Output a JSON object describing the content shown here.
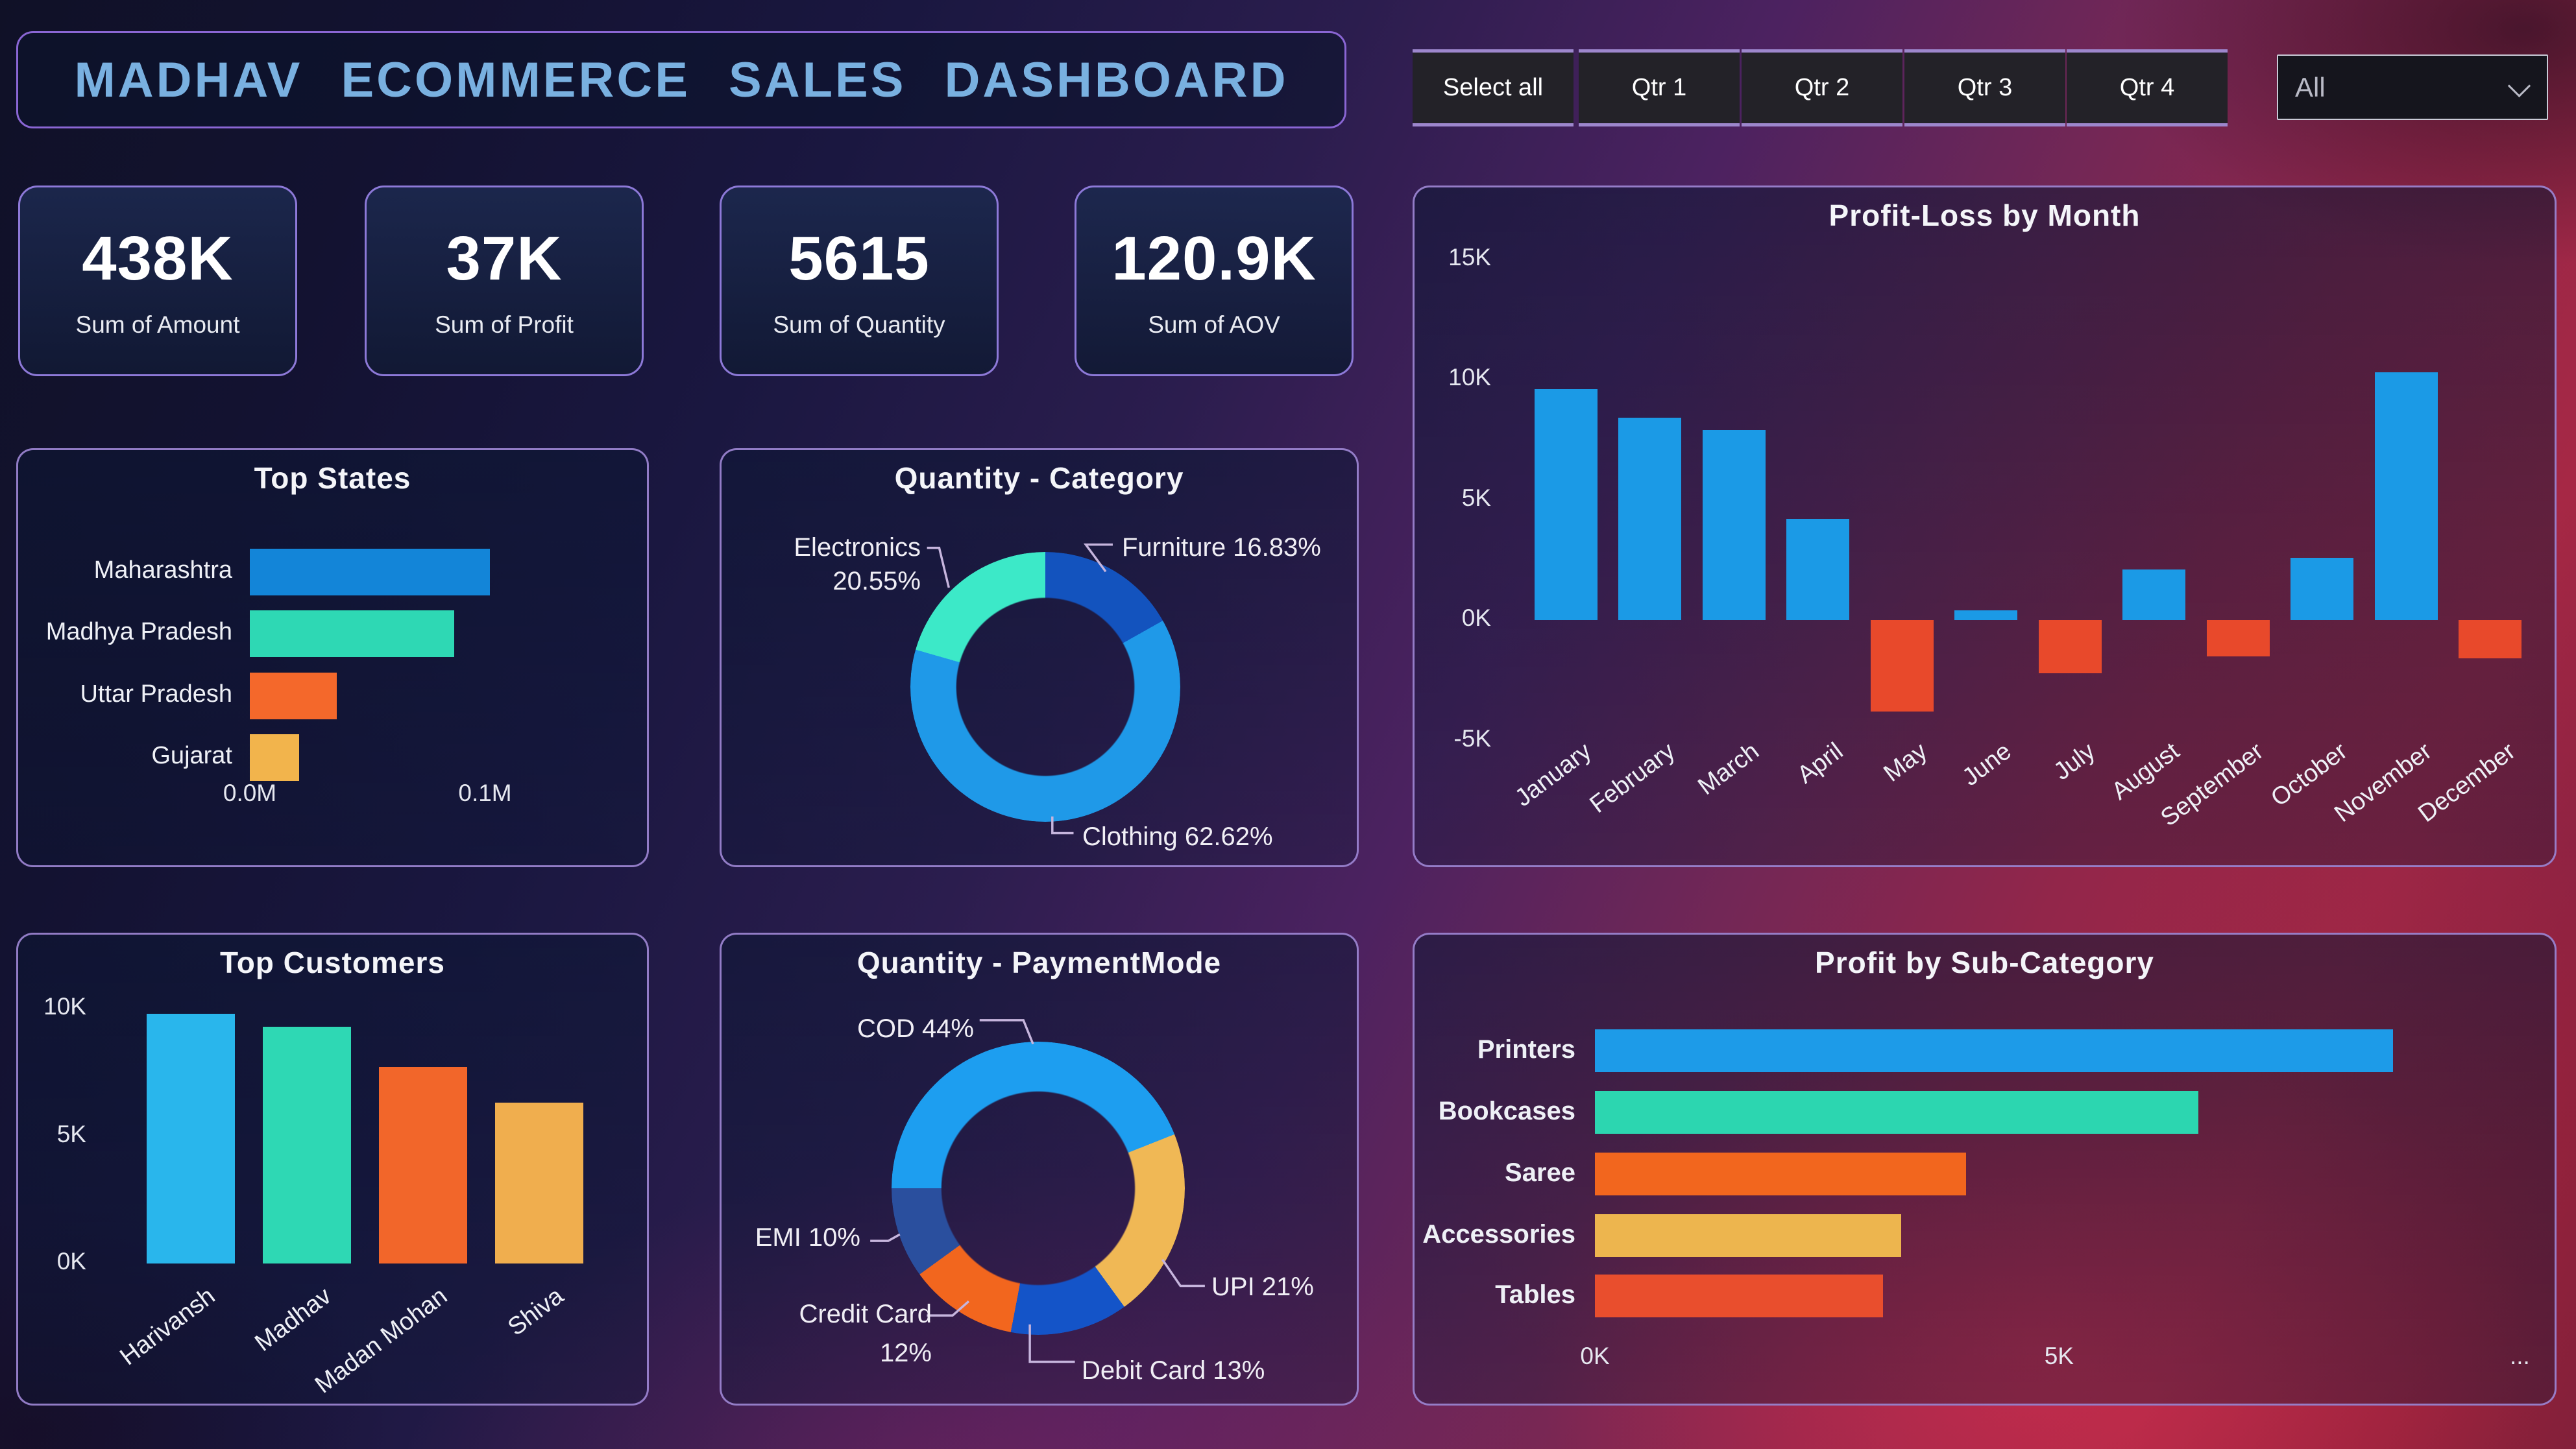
{
  "title": "MADHAV  ECOMMERCE  SALES  DASHBOARD",
  "slicer": {
    "buttons": [
      "Select all",
      "Qtr 1",
      "Qtr 2",
      "Qtr 3",
      "Qtr 4"
    ]
  },
  "dropdown": {
    "value": "All"
  },
  "kpis": [
    {
      "value": "438K",
      "label": "Sum of Amount"
    },
    {
      "value": "37K",
      "label": "Sum of Profit"
    },
    {
      "value": "5615",
      "label": "Sum of Quantity"
    },
    {
      "value": "120.9K",
      "label": "Sum of AOV"
    }
  ],
  "colors": {
    "accent_border": "#9d86cd",
    "title_text": "#79b0e0",
    "positive_blue": "#1b9ae6",
    "negative_red": "#e8492b"
  },
  "chart_data": [
    {
      "id": "top_states",
      "type": "bar",
      "orientation": "horizontal",
      "title": "Top States",
      "categories": [
        "Maharashtra",
        "Madhya Pradesh",
        "Uttar Pradesh",
        "Gujarat"
      ],
      "values": [
        0.102,
        0.087,
        0.037,
        0.021
      ],
      "unit": "M",
      "xlabel": "",
      "ylabel": "",
      "grid": false,
      "xlim": [
        0,
        0.16
      ],
      "xticks": [
        {
          "label": "0.0M",
          "value": 0.0
        },
        {
          "label": "0.1M",
          "value": 0.1
        }
      ],
      "colors": [
        "#1385d8",
        "#2ed8b4",
        "#f4682b",
        "#f2b44c"
      ]
    },
    {
      "id": "quantity_category",
      "type": "donut",
      "title": "Quantity - Category",
      "slices": [
        {
          "label": "Furniture",
          "pct": 16.83,
          "pct_display": "16.83%",
          "display": "Furniture 16.83%",
          "color": "#1353be"
        },
        {
          "label": "Clothing",
          "pct": 62.62,
          "pct_display": "62.62%",
          "display": "Clothing 62.62%",
          "color": "#1f99e8"
        },
        {
          "label": "Electronics",
          "pct": 20.55,
          "pct_display": "20.55%",
          "display": "Electronics 20.55%",
          "color": "#3ce9c8"
        }
      ]
    },
    {
      "id": "profit_loss_by_month",
      "type": "bar",
      "orientation": "vertical",
      "title": "Profit-Loss by Month",
      "categories": [
        "January",
        "February",
        "March",
        "April",
        "May",
        "June",
        "July",
        "August",
        "September",
        "October",
        "November",
        "December"
      ],
      "values": [
        9.6,
        8.4,
        7.9,
        4.2,
        -3.8,
        0.4,
        -2.2,
        2.1,
        -1.5,
        2.6,
        10.3,
        -1.6
      ],
      "unit": "K",
      "xlabel": "",
      "ylabel": "",
      "grid": false,
      "ylim": [
        -5,
        15
      ],
      "yticks": [
        {
          "label": "15K",
          "value": 15
        },
        {
          "label": "10K",
          "value": 10
        },
        {
          "label": "5K",
          "value": 5
        },
        {
          "label": "0K",
          "value": 0
        },
        {
          "label": "-5K",
          "value": -5
        }
      ],
      "positive_color": "#1b9ae6",
      "negative_color": "#e8492b"
    },
    {
      "id": "top_customers",
      "type": "bar",
      "orientation": "vertical",
      "title": "Top Customers",
      "categories": [
        "Harivansh",
        "Madhav",
        "Madan Mohan",
        "Shiva"
      ],
      "values": [
        9.8,
        9.3,
        7.7,
        6.3
      ],
      "unit": "K",
      "xlabel": "",
      "ylabel": "",
      "grid": false,
      "ylim": [
        0,
        10.5
      ],
      "yticks": [
        {
          "label": "10K",
          "value": 10
        },
        {
          "label": "5K",
          "value": 5
        },
        {
          "label": "0K",
          "value": 0
        }
      ],
      "colors": [
        "#29b6ec",
        "#2ed8b4",
        "#f2662a",
        "#f0ae4e"
      ]
    },
    {
      "id": "quantity_paymentmode",
      "type": "donut",
      "title": "Quantity - PaymentMode",
      "slices": [
        {
          "label": "COD",
          "pct": 44,
          "pct_display": "44%",
          "display": "COD 44%",
          "color": "#1d9ef0"
        },
        {
          "label": "UPI",
          "pct": 21,
          "pct_display": "21%",
          "display": "UPI 21%",
          "color": "#f0b855"
        },
        {
          "label": "Debit Card",
          "pct": 13,
          "pct_display": "13%",
          "display": "Debit Card 13%",
          "color": "#1454c8"
        },
        {
          "label": "Credit Card",
          "pct": 12,
          "pct_display": "12%",
          "display": "Credit Card 12%",
          "color": "#f2661e"
        },
        {
          "label": "EMI",
          "pct": 10,
          "pct_display": "10%",
          "display": "EMI 10%",
          "color": "#2a4f9e"
        }
      ]
    },
    {
      "id": "profit_by_subcategory",
      "type": "bar",
      "orientation": "horizontal",
      "title": "Profit by Sub-Category",
      "categories": [
        "Printers",
        "Bookcases",
        "Saree",
        "Accessories",
        "Tables"
      ],
      "values": [
        8.6,
        6.5,
        4.0,
        3.3,
        3.1
      ],
      "unit": "K",
      "xlabel": "",
      "ylabel": "",
      "grid": false,
      "xlim": [
        0,
        10.1
      ],
      "xticks": [
        {
          "label": "0K",
          "value": 0
        },
        {
          "label": "5K",
          "value": 5
        }
      ],
      "overflow_tick": "...",
      "colors": [
        "#1d9be8",
        "#2cd6b0",
        "#f2661e",
        "#edb54e",
        "#e94e2d"
      ]
    }
  ]
}
